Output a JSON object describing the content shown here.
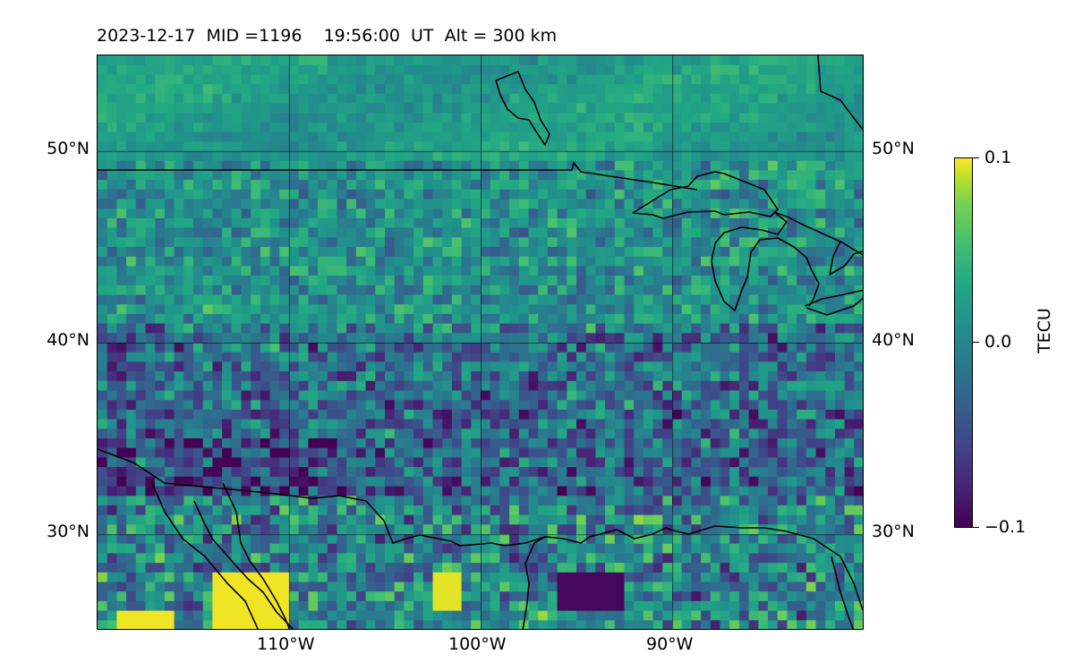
{
  "header": {
    "title": "2023-12-17  MID =1196    19:56:00  UT  Alt = 300 km"
  },
  "map": {
    "projection": "PlateCarree",
    "lon_range": [
      -120,
      -80
    ],
    "lat_range": [
      25,
      55
    ],
    "gridlines": true,
    "coastlines": true,
    "lon_ticks": [
      "110°W",
      "100°W",
      "90°W"
    ],
    "lat_ticks_left": [
      "50°N",
      "40°N",
      "30°N"
    ],
    "lat_ticks_right": [
      "50°N",
      "40°N",
      "30°N"
    ],
    "field": "TEC perturbation (noisy grid, ~0.5° cells)",
    "colormap": "viridis"
  },
  "colorbar": {
    "label": "TECU",
    "max_label": "0.1",
    "mid_label": "0.0",
    "min_label": "−0.1",
    "vmin": -0.1,
    "vmax": 0.1
  }
}
